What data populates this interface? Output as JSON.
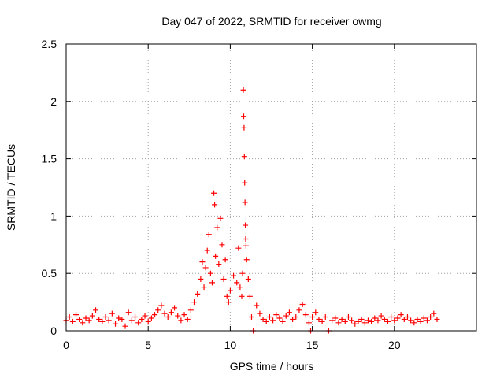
{
  "chart_data": {
    "type": "scatter",
    "title": "Day 047 of 2022, SRMTID for receiver owmg",
    "xlabel": "GPS time / hours",
    "ylabel": "SRMTID / TECUs",
    "xlim": [
      0,
      25
    ],
    "ylim": [
      0,
      2.5
    ],
    "x_ticks": [
      {
        "value": 0,
        "label": "0"
      },
      {
        "value": 5,
        "label": "5"
      },
      {
        "value": 10,
        "label": "10"
      },
      {
        "value": 15,
        "label": "15"
      },
      {
        "value": 20,
        "label": "20"
      }
    ],
    "y_ticks": [
      {
        "value": 0,
        "label": "0"
      },
      {
        "value": 0.5,
        "label": "0.5"
      },
      {
        "value": 1,
        "label": "1"
      },
      {
        "value": 1.5,
        "label": "1.5"
      },
      {
        "value": 2,
        "label": "2"
      },
      {
        "value": 2.5,
        "label": "2.5"
      }
    ],
    "grid": true,
    "marker": "+",
    "color": "#ff0000",
    "series": [
      {
        "name": "SRMTID",
        "points": [
          [
            0.0,
            0.09
          ],
          [
            0.2,
            0.12
          ],
          [
            0.4,
            0.08
          ],
          [
            0.6,
            0.14
          ],
          [
            0.8,
            0.1
          ],
          [
            1.0,
            0.07
          ],
          [
            1.2,
            0.11
          ],
          [
            1.4,
            0.09
          ],
          [
            1.6,
            0.13
          ],
          [
            1.8,
            0.18
          ],
          [
            2.0,
            0.1
          ],
          [
            2.2,
            0.08
          ],
          [
            2.4,
            0.12
          ],
          [
            2.6,
            0.09
          ],
          [
            2.8,
            0.15
          ],
          [
            3.0,
            0.06
          ],
          [
            3.2,
            0.11
          ],
          [
            3.4,
            0.1
          ],
          [
            3.6,
            0.04
          ],
          [
            3.8,
            0.16
          ],
          [
            4.0,
            0.09
          ],
          [
            4.2,
            0.12
          ],
          [
            4.4,
            0.07
          ],
          [
            4.6,
            0.1
          ],
          [
            4.8,
            0.13
          ],
          [
            5.0,
            0.08
          ],
          [
            5.2,
            0.11
          ],
          [
            5.4,
            0.14
          ],
          [
            5.6,
            0.18
          ],
          [
            5.8,
            0.22
          ],
          [
            6.0,
            0.15
          ],
          [
            6.2,
            0.12
          ],
          [
            6.4,
            0.16
          ],
          [
            6.6,
            0.2
          ],
          [
            6.8,
            0.13
          ],
          [
            7.0,
            0.09
          ],
          [
            7.2,
            0.14
          ],
          [
            7.4,
            0.1
          ],
          [
            7.6,
            0.18
          ],
          [
            7.8,
            0.25
          ],
          [
            8.0,
            0.32
          ],
          [
            8.2,
            0.45
          ],
          [
            8.3,
            0.6
          ],
          [
            8.4,
            0.38
          ],
          [
            8.5,
            0.55
          ],
          [
            8.6,
            0.7
          ],
          [
            8.7,
            0.84
          ],
          [
            8.8,
            0.5
          ],
          [
            8.9,
            0.42
          ],
          [
            9.0,
            1.2
          ],
          [
            9.05,
            1.1
          ],
          [
            9.1,
            0.65
          ],
          [
            9.2,
            0.9
          ],
          [
            9.3,
            0.58
          ],
          [
            9.4,
            0.98
          ],
          [
            9.5,
            0.75
          ],
          [
            9.6,
            0.45
          ],
          [
            9.7,
            0.62
          ],
          [
            9.8,
            0.3
          ],
          [
            9.9,
            0.25
          ],
          [
            10.0,
            0.35
          ],
          [
            10.2,
            0.48
          ],
          [
            10.4,
            0.42
          ],
          [
            10.5,
            0.72
          ],
          [
            10.6,
            0.38
          ],
          [
            10.7,
            0.3
          ],
          [
            10.75,
            0.5
          ],
          [
            10.8,
            2.1
          ],
          [
            10.82,
            1.87
          ],
          [
            10.84,
            1.77
          ],
          [
            10.86,
            1.52
          ],
          [
            10.88,
            1.29
          ],
          [
            10.9,
            1.12
          ],
          [
            10.92,
            0.92
          ],
          [
            10.94,
            0.8
          ],
          [
            10.96,
            0.74
          ],
          [
            11.0,
            0.62
          ],
          [
            11.1,
            0.45
          ],
          [
            11.2,
            0.3
          ],
          [
            11.3,
            0.12
          ],
          [
            11.4,
            0.0
          ],
          [
            11.6,
            0.22
          ],
          [
            11.8,
            0.15
          ],
          [
            12.0,
            0.1
          ],
          [
            12.2,
            0.08
          ],
          [
            12.4,
            0.12
          ],
          [
            12.6,
            0.09
          ],
          [
            12.8,
            0.14
          ],
          [
            13.0,
            0.11
          ],
          [
            13.2,
            0.08
          ],
          [
            13.4,
            0.13
          ],
          [
            13.6,
            0.16
          ],
          [
            13.8,
            0.1
          ],
          [
            14.0,
            0.12
          ],
          [
            14.2,
            0.18
          ],
          [
            14.4,
            0.23
          ],
          [
            14.6,
            0.14
          ],
          [
            14.8,
            0.07
          ],
          [
            14.9,
            0.0
          ],
          [
            15.0,
            0.12
          ],
          [
            15.2,
            0.16
          ],
          [
            15.4,
            0.1
          ],
          [
            15.6,
            0.08
          ],
          [
            15.8,
            0.12
          ],
          [
            16.0,
            0.0
          ],
          [
            16.2,
            0.09
          ],
          [
            16.4,
            0.11
          ],
          [
            16.6,
            0.07
          ],
          [
            16.8,
            0.1
          ],
          [
            17.0,
            0.08
          ],
          [
            17.2,
            0.12
          ],
          [
            17.4,
            0.09
          ],
          [
            17.6,
            0.06
          ],
          [
            17.8,
            0.08
          ],
          [
            18.0,
            0.1
          ],
          [
            18.2,
            0.07
          ],
          [
            18.4,
            0.09
          ],
          [
            18.6,
            0.08
          ],
          [
            18.8,
            0.11
          ],
          [
            19.0,
            0.09
          ],
          [
            19.2,
            0.13
          ],
          [
            19.4,
            0.1
          ],
          [
            19.6,
            0.08
          ],
          [
            19.8,
            0.12
          ],
          [
            20.0,
            0.09
          ],
          [
            20.2,
            0.11
          ],
          [
            20.4,
            0.14
          ],
          [
            20.6,
            0.1
          ],
          [
            20.8,
            0.12
          ],
          [
            21.0,
            0.09
          ],
          [
            21.2,
            0.07
          ],
          [
            21.4,
            0.1
          ],
          [
            21.6,
            0.08
          ],
          [
            21.8,
            0.11
          ],
          [
            22.0,
            0.09
          ],
          [
            22.2,
            0.12
          ],
          [
            22.4,
            0.15
          ],
          [
            22.6,
            0.1
          ]
        ]
      }
    ]
  }
}
